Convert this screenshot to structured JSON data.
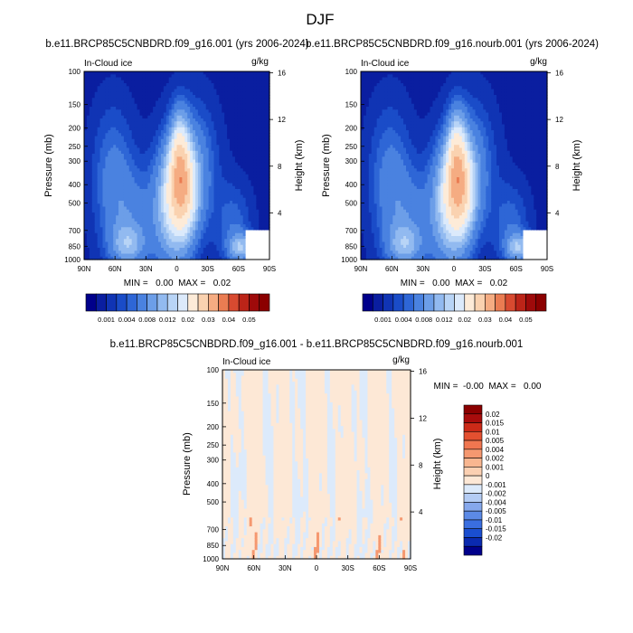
{
  "page_title": "DJF",
  "colors": {
    "seq_palette": [
      "#00008b",
      "#0a1ea0",
      "#1034b4",
      "#1a4cc8",
      "#2e66d6",
      "#4a82e0",
      "#6c9ee8",
      "#92baf0",
      "#b8d4f6",
      "#dceafb",
      "#fdebd8",
      "#fad2b0",
      "#f5ac82",
      "#ea7c52",
      "#d84a30",
      "#bc2418",
      "#9e0a0a",
      "#8b0000"
    ],
    "diff_palette": [
      "#00008b",
      "#0a2ab0",
      "#1a4ed0",
      "#3a6ee0",
      "#5c8ae6",
      "#86a8ec",
      "#b4ccf4",
      "#dceafb",
      "#fde8d6",
      "#fbd0b2",
      "#f8b690",
      "#f59870",
      "#f07650",
      "#e45030",
      "#cc2a18",
      "#a80c0c",
      "#8b0000"
    ]
  },
  "chart_data": [
    {
      "type": "heatmap",
      "title": "b.e11.BRCP85C5CNBDRD.f09_g16.001 (yrs 2006-2024)",
      "left_label": "In-Cloud ice",
      "right_label": "g/kg",
      "xlabel": "",
      "ylabel": "Pressure (mb)",
      "ylabel_right": "Height (km)",
      "x_ticks": [
        "90N",
        "60N",
        "30N",
        "0",
        "30S",
        "60S",
        "90S"
      ],
      "y_ticks": [
        "100",
        "150",
        "200",
        "250",
        "300",
        "400",
        "500",
        "700",
        "850",
        "1000"
      ],
      "height_ticks": [
        "16",
        "12",
        "8",
        "4"
      ],
      "stats": "MIN =   0.00  MAX =   0.02",
      "colorbar_labels": [
        "0.001",
        "0.004",
        "0.008",
        "0.012",
        "0.02",
        "0.03",
        "0.04",
        "0.05"
      ]
    },
    {
      "type": "heatmap",
      "title": "b.e11.BRCP85C5CNBDRD.f09_g16.nourb.001 (yrs 2006-2024)",
      "left_label": "In-Cloud ice",
      "right_label": "g/kg",
      "xlabel": "",
      "ylabel": "Pressure (mb)",
      "ylabel_right": "Height (km)",
      "x_ticks": [
        "90N",
        "60N",
        "30N",
        "0",
        "30S",
        "60S",
        "90S"
      ],
      "y_ticks": [
        "100",
        "150",
        "200",
        "250",
        "300",
        "400",
        "500",
        "700",
        "850",
        "1000"
      ],
      "height_ticks": [
        "16",
        "12",
        "8",
        "4"
      ],
      "stats": "MIN =   0.00  MAX =   0.02",
      "colorbar_labels": [
        "0.001",
        "0.004",
        "0.008",
        "0.012",
        "0.02",
        "0.03",
        "0.04",
        "0.05"
      ]
    },
    {
      "type": "heatmap",
      "title": "b.e11.BRCP85C5CNBDRD.f09_g16.001 - b.e11.BRCP85C5CNBDRD.f09_g16.nourb.001",
      "left_label": "In-Cloud ice",
      "right_label": "g/kg",
      "xlabel": "",
      "ylabel": "Pressure (mb)",
      "ylabel_right": "Height (km)",
      "x_ticks": [
        "90N",
        "60N",
        "30N",
        "0",
        "30S",
        "60S",
        "90S"
      ],
      "y_ticks": [
        "100",
        "150",
        "200",
        "250",
        "300",
        "400",
        "500",
        "700",
        "850",
        "1000"
      ],
      "height_ticks": [
        "16",
        "12",
        "8",
        "4"
      ],
      "stats": "MIN =  -0.00  MAX =   0.00",
      "colorbar_labels": [
        "0.02",
        "0.015",
        "0.01",
        "0.005",
        "0.004",
        "0.002",
        "0.001",
        "0",
        "-0.001",
        "-0.002",
        "-0.004",
        "-0.005",
        "-0.01",
        "-0.015",
        "-0.02"
      ]
    }
  ]
}
